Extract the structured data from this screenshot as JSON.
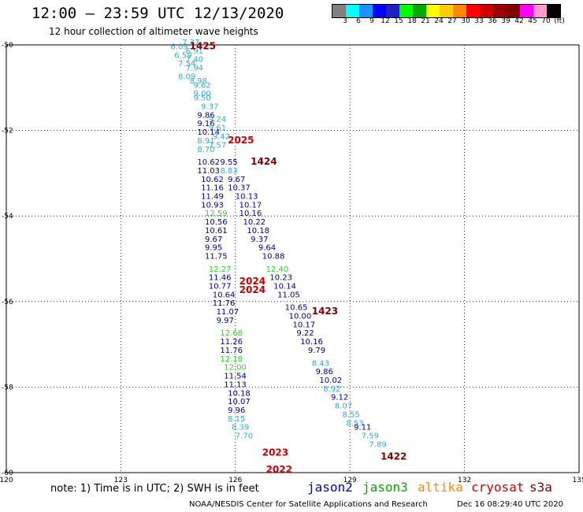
{
  "header": {
    "title": "12:00 – 23:59 UTC 12/13/2020",
    "subtitle": "12 hour collection of altimeter wave heights"
  },
  "colorbar": {
    "colors": [
      "#808080",
      "#00ffff",
      "#1e90ff",
      "#0000ff",
      "#2020c0",
      "#00ff00",
      "#00aa00",
      "#ffff00",
      "#ffcc00",
      "#ff8800",
      "#ff0000",
      "#cc0000",
      "#990000",
      "#800000",
      "#ff00ff",
      "#ff99cc",
      "#000000"
    ],
    "labels": [
      "3",
      "6",
      "9",
      "12",
      "15",
      "18",
      "21",
      "24",
      "27",
      "30",
      "33",
      "36",
      "39",
      "42",
      "45",
      "70",
      "(ft)"
    ]
  },
  "axes": {
    "lon_ticks": [
      "120",
      "123",
      "126",
      "129",
      "132",
      "135"
    ],
    "lat_ticks": [
      "-50",
      "-52",
      "-54",
      "-56",
      "-58",
      "-60"
    ]
  },
  "passes": [
    {
      "label": "1425",
      "color": "#800000",
      "lat": -50.1,
      "lon": 124.8
    },
    {
      "label": "2025",
      "color": "#cc0000",
      "lat": -52.3,
      "lon": 125.8
    },
    {
      "label": "1424",
      "color": "#800000",
      "lat": -52.8,
      "lon": 126.4
    },
    {
      "label": "2024",
      "color": "#cc0000",
      "lat": -55.6,
      "lon": 126.1
    },
    {
      "label": "2024",
      "color": "#cc0000",
      "lat": -55.8,
      "lon": 126.1
    },
    {
      "label": "1423",
      "color": "#800000",
      "lat": -56.3,
      "lon": 128.0
    },
    {
      "label": "2023",
      "color": "#cc0000",
      "lat": -59.6,
      "lon": 126.7
    },
    {
      "label": "1422",
      "color": "#800000",
      "lat": -59.7,
      "lon": 129.8
    },
    {
      "label": "2022",
      "color": "#cc0000",
      "lat": -60.0,
      "lon": 126.8
    }
  ],
  "observations": [
    {
      "v": "6.09",
      "c": "#33aadd",
      "lat": -50.1,
      "lon": 124.3
    },
    {
      "v": "7.37",
      "c": "#33aadd",
      "lat": -50.0,
      "lon": 124.6
    },
    {
      "v": "6.59",
      "c": "#33aadd",
      "lat": -50.3,
      "lon": 124.4
    },
    {
      "v": "6.91",
      "c": "#33aadd",
      "lat": -50.2,
      "lon": 124.7
    },
    {
      "v": "7.54",
      "c": "#33aadd",
      "lat": -50.5,
      "lon": 124.5
    },
    {
      "v": "7.40",
      "c": "#33aadd",
      "lat": -50.4,
      "lon": 124.7
    },
    {
      "v": "7.94",
      "c": "#33aadd",
      "lat": -50.6,
      "lon": 124.7
    },
    {
      "v": "8.09",
      "c": "#33aadd",
      "lat": -50.8,
      "lon": 124.5
    },
    {
      "v": "8.98",
      "c": "#33aadd",
      "lat": -50.9,
      "lon": 124.8
    },
    {
      "v": "9.62",
      "c": "#33aadd",
      "lat": -51.0,
      "lon": 124.9
    },
    {
      "v": "9.00",
      "c": "#33aadd",
      "lat": -51.2,
      "lon": 124.9
    },
    {
      "v": "9.50",
      "c": "#33aadd",
      "lat": -51.3,
      "lon": 124.9
    },
    {
      "v": "9.37",
      "c": "#33aadd",
      "lat": -51.5,
      "lon": 125.1
    },
    {
      "v": "9.86",
      "c": "#00008b",
      "lat": -51.7,
      "lon": 125.0
    },
    {
      "v": "9.24",
      "c": "#33aadd",
      "lat": -51.8,
      "lon": 125.3
    },
    {
      "v": "9.16",
      "c": "#00008b",
      "lat": -51.9,
      "lon": 125.0
    },
    {
      "v": "9.61",
      "c": "#33aadd",
      "lat": -52.0,
      "lon": 125.3
    },
    {
      "v": "10.14",
      "c": "#00008b",
      "lat": -52.1,
      "lon": 125.0
    },
    {
      "v": "9.42",
      "c": "#33aadd",
      "lat": -52.2,
      "lon": 125.4
    },
    {
      "v": "8.91",
      "c": "#33aadd",
      "lat": -52.3,
      "lon": 125.0
    },
    {
      "v": "7.57",
      "c": "#33aadd",
      "lat": -52.4,
      "lon": 125.3
    },
    {
      "v": "8.70",
      "c": "#33aadd",
      "lat": -52.5,
      "lon": 125.0
    },
    {
      "v": "10.62",
      "c": "#00008b",
      "lat": -52.8,
      "lon": 125.0
    },
    {
      "v": "9.55",
      "c": "#00008b",
      "lat": -52.8,
      "lon": 125.6
    },
    {
      "v": "11.03",
      "c": "#00008b",
      "lat": -53.0,
      "lon": 125.0
    },
    {
      "v": "8.83",
      "c": "#33aadd",
      "lat": -53.0,
      "lon": 125.6
    },
    {
      "v": "10.62",
      "c": "#00008b",
      "lat": -53.2,
      "lon": 125.1
    },
    {
      "v": "9.67",
      "c": "#00008b",
      "lat": -53.2,
      "lon": 125.8
    },
    {
      "v": "11.16",
      "c": "#00008b",
      "lat": -53.4,
      "lon": 125.1
    },
    {
      "v": "10.37",
      "c": "#00008b",
      "lat": -53.4,
      "lon": 125.8
    },
    {
      "v": "11.49",
      "c": "#00008b",
      "lat": -53.6,
      "lon": 125.1
    },
    {
      "v": "10.13",
      "c": "#00008b",
      "lat": -53.6,
      "lon": 126.0
    },
    {
      "v": "10.93",
      "c": "#00008b",
      "lat": -53.8,
      "lon": 125.1
    },
    {
      "v": "10.17",
      "c": "#00008b",
      "lat": -53.8,
      "lon": 126.1
    },
    {
      "v": "12.59",
      "c": "#33cc33",
      "lat": -54.0,
      "lon": 125.2
    },
    {
      "v": "10.16",
      "c": "#00008b",
      "lat": -54.0,
      "lon": 126.1
    },
    {
      "v": "10.56",
      "c": "#00008b",
      "lat": -54.2,
      "lon": 125.2
    },
    {
      "v": "10.22",
      "c": "#00008b",
      "lat": -54.2,
      "lon": 126.2
    },
    {
      "v": "10.61",
      "c": "#00008b",
      "lat": -54.4,
      "lon": 125.2
    },
    {
      "v": "10.18",
      "c": "#00008b",
      "lat": -54.4,
      "lon": 126.3
    },
    {
      "v": "9.67",
      "c": "#00008b",
      "lat": -54.6,
      "lon": 125.2
    },
    {
      "v": "9.37",
      "c": "#00008b",
      "lat": -54.6,
      "lon": 126.4
    },
    {
      "v": "9.95",
      "c": "#00008b",
      "lat": -54.8,
      "lon": 125.2
    },
    {
      "v": "9.64",
      "c": "#00008b",
      "lat": -54.8,
      "lon": 126.6
    },
    {
      "v": "11.75",
      "c": "#00008b",
      "lat": -55.0,
      "lon": 125.2
    },
    {
      "v": "10.88",
      "c": "#00008b",
      "lat": -55.0,
      "lon": 126.7
    },
    {
      "v": "12.27",
      "c": "#33cc33",
      "lat": -55.3,
      "lon": 125.3
    },
    {
      "v": "12.40",
      "c": "#33cc33",
      "lat": -55.3,
      "lon": 126.8
    },
    {
      "v": "11.46",
      "c": "#00008b",
      "lat": -55.5,
      "lon": 125.3
    },
    {
      "v": "10.23",
      "c": "#00008b",
      "lat": -55.5,
      "lon": 126.9
    },
    {
      "v": "10.77",
      "c": "#00008b",
      "lat": -55.7,
      "lon": 125.3
    },
    {
      "v": "10.14",
      "c": "#00008b",
      "lat": -55.7,
      "lon": 127.0
    },
    {
      "v": "10.64",
      "c": "#00008b",
      "lat": -55.9,
      "lon": 125.4
    },
    {
      "v": "11.05",
      "c": "#00008b",
      "lat": -55.9,
      "lon": 127.1
    },
    {
      "v": "11.76",
      "c": "#00008b",
      "lat": -56.1,
      "lon": 125.4
    },
    {
      "v": "10.65",
      "c": "#00008b",
      "lat": -56.2,
      "lon": 127.3
    },
    {
      "v": "11.07",
      "c": "#00008b",
      "lat": -56.3,
      "lon": 125.5
    },
    {
      "v": "10.00",
      "c": "#00008b",
      "lat": -56.4,
      "lon": 127.4
    },
    {
      "v": "9.97",
      "c": "#00008b",
      "lat": -56.5,
      "lon": 125.5
    },
    {
      "v": "10.17",
      "c": "#00008b",
      "lat": -56.6,
      "lon": 127.5
    },
    {
      "v": "12.68",
      "c": "#33cc33",
      "lat": -56.8,
      "lon": 125.6
    },
    {
      "v": "9.22",
      "c": "#00008b",
      "lat": -56.8,
      "lon": 127.6
    },
    {
      "v": "11.26",
      "c": "#00008b",
      "lat": -57.0,
      "lon": 125.6
    },
    {
      "v": "10.16",
      "c": "#00008b",
      "lat": -57.0,
      "lon": 127.7
    },
    {
      "v": "11.76",
      "c": "#00008b",
      "lat": -57.2,
      "lon": 125.6
    },
    {
      "v": "9.79",
      "c": "#00008b",
      "lat": -57.2,
      "lon": 127.9
    },
    {
      "v": "12.18",
      "c": "#33cc33",
      "lat": -57.4,
      "lon": 125.6
    },
    {
      "v": "8.43",
      "c": "#33aadd",
      "lat": -57.5,
      "lon": 128.0
    },
    {
      "v": "12.00",
      "c": "#33cc33",
      "lat": -57.6,
      "lon": 125.7
    },
    {
      "v": "9.86",
      "c": "#00008b",
      "lat": -57.7,
      "lon": 128.1
    },
    {
      "v": "11.54",
      "c": "#00008b",
      "lat": -57.8,
      "lon": 125.7
    },
    {
      "v": "10.02",
      "c": "#00008b",
      "lat": -57.9,
      "lon": 128.2
    },
    {
      "v": "11.13",
      "c": "#00008b",
      "lat": -58.0,
      "lon": 125.7
    },
    {
      "v": "8.92",
      "c": "#33aadd",
      "lat": -58.1,
      "lon": 128.3
    },
    {
      "v": "10.18",
      "c": "#00008b",
      "lat": -58.2,
      "lon": 125.8
    },
    {
      "v": "9.12",
      "c": "#00008b",
      "lat": -58.3,
      "lon": 128.5
    },
    {
      "v": "10.07",
      "c": "#00008b",
      "lat": -58.4,
      "lon": 125.8
    },
    {
      "v": "8.07",
      "c": "#33aadd",
      "lat": -58.5,
      "lon": 128.6
    },
    {
      "v": "9.96",
      "c": "#00008b",
      "lat": -58.6,
      "lon": 125.8
    },
    {
      "v": "8.55",
      "c": "#33aadd",
      "lat": -58.7,
      "lon": 128.8
    },
    {
      "v": "8.15",
      "c": "#33aadd",
      "lat": -58.8,
      "lon": 125.8
    },
    {
      "v": "8.53",
      "c": "#33aadd",
      "lat": -58.9,
      "lon": 128.9
    },
    {
      "v": "9.11",
      "c": "#00008b",
      "lat": -59.0,
      "lon": 129.1
    },
    {
      "v": "8.39",
      "c": "#33aadd",
      "lat": -59.0,
      "lon": 125.9
    },
    {
      "v": "7.59",
      "c": "#33aadd",
      "lat": -59.2,
      "lon": 129.3
    },
    {
      "v": "7.70",
      "c": "#33aadd",
      "lat": -59.2,
      "lon": 126.0
    },
    {
      "v": "7.89",
      "c": "#33aadd",
      "lat": -59.4,
      "lon": 129.5
    }
  ],
  "footer": {
    "note": "note: 1) Time is in UTC; 2) SWH is in feet",
    "credit": "NOAA/NESDIS Center for Satellite Applications and Research",
    "timestamp": "Dec 16 08:29:40 UTC 2020"
  },
  "satellites": [
    {
      "name": "jason2",
      "color": "#0000cc"
    },
    {
      "name": "jason3",
      "color": "#00aa00"
    },
    {
      "name": "altika",
      "color": "#ff8800"
    },
    {
      "name": "cryosat",
      "color": "#cc0000"
    },
    {
      "name": "s3a",
      "color": "#800000"
    }
  ]
}
